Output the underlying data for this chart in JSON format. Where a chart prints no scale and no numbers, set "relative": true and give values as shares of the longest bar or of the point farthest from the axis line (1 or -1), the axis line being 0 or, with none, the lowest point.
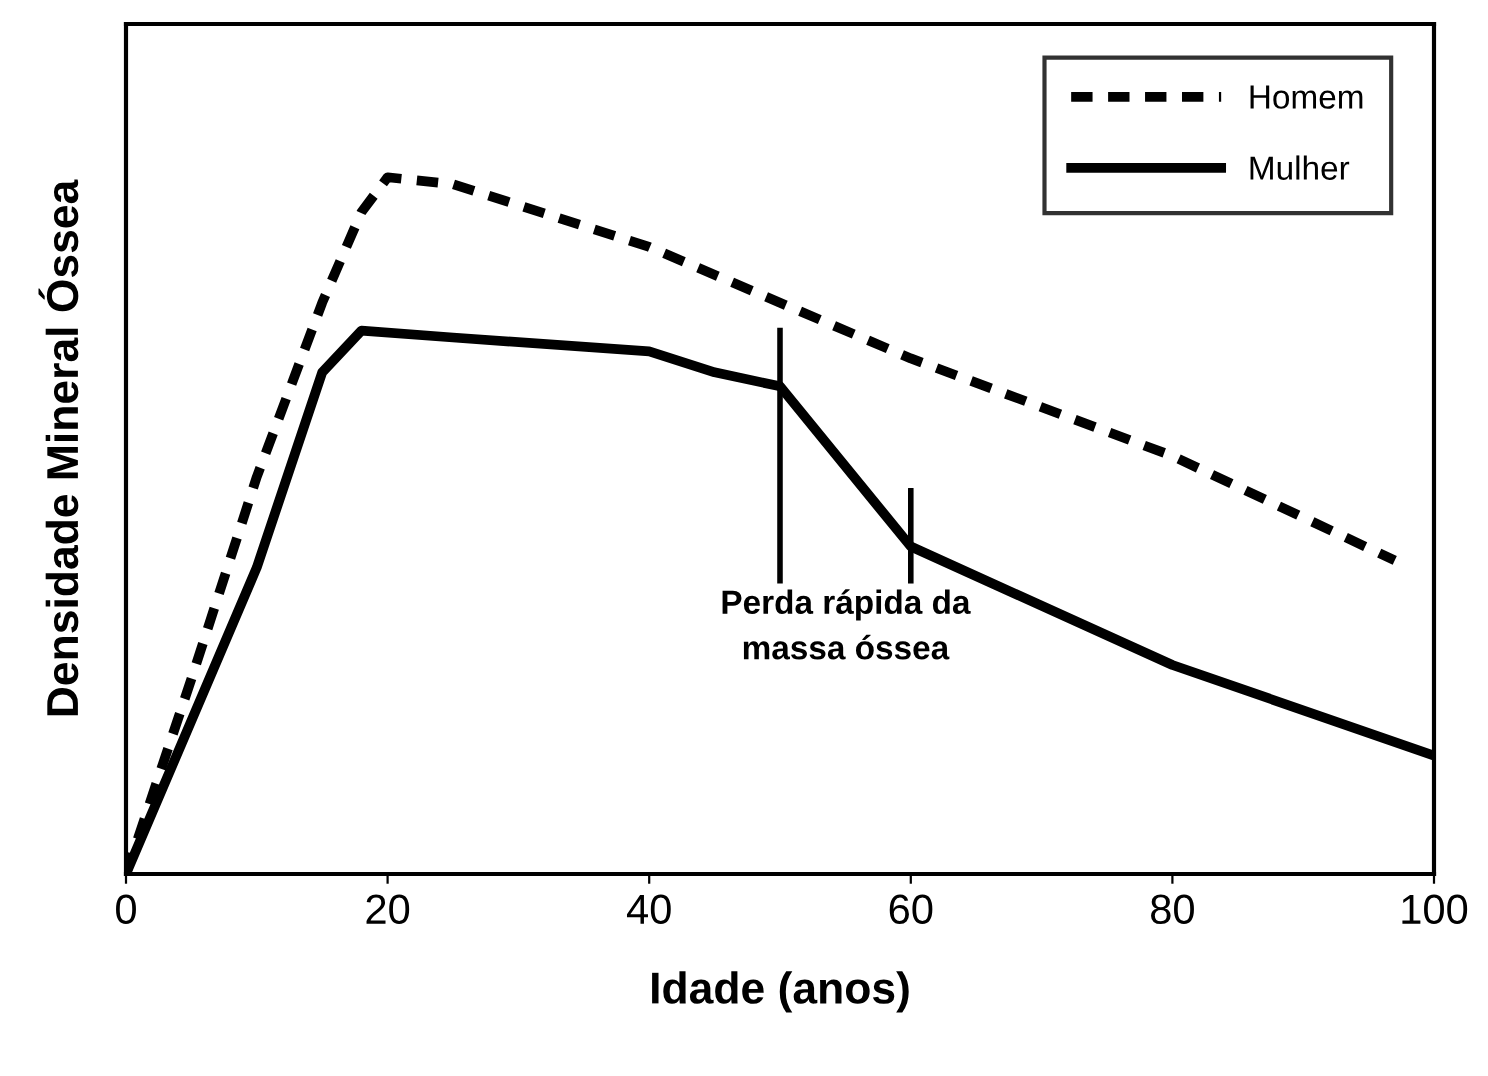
{
  "chart_data": {
    "type": "line",
    "xlabel": "Idade (anos)",
    "ylabel": "Densidade Mineral Óssea",
    "relative": true,
    "xlim": [
      0,
      100
    ],
    "xticks": [
      0,
      20,
      40,
      60,
      80,
      100
    ],
    "grid": false,
    "legend": "top right",
    "marker": "none",
    "tick_labels": "x",
    "series": [
      {
        "name": "Homem",
        "color": "#000000",
        "line_style": "dashed",
        "x": [
          0,
          5,
          10,
          15,
          18,
          20,
          25,
          40,
          50,
          60,
          80,
          97
        ],
        "values": [
          0,
          0.28,
          0.57,
          0.82,
          0.95,
          1,
          0.99,
          0.9,
          0.82,
          0.74,
          0.6,
          0.45
        ]
      },
      {
        "name": "Mulher",
        "color": "#000000",
        "line_style": "solid",
        "x": [
          0,
          10,
          15,
          18,
          25,
          40,
          45,
          50,
          60,
          80,
          100
        ],
        "values": [
          0,
          0.44,
          0.72,
          0.78,
          0.77,
          0.75,
          0.72,
          0.7,
          0.47,
          0.3,
          0.17
        ]
      }
    ],
    "ref_lines": [
      {
        "axis": "x",
        "value": 50,
        "color": "#000000"
      },
      {
        "axis": "x",
        "value": 60,
        "color": "#000000"
      }
    ],
    "annotations": [
      "Perda rápida da\nmassa óssea"
    ]
  }
}
